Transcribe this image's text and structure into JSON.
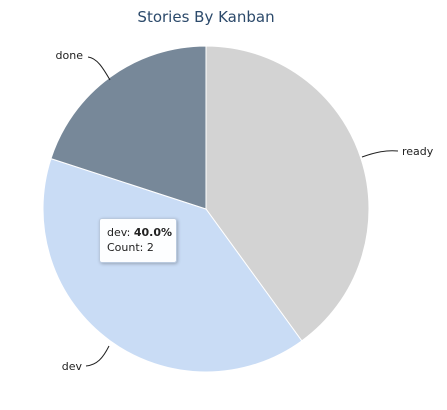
{
  "chart_data": {
    "type": "pie",
    "title": "Stories By Kanban",
    "series": [
      {
        "name": "",
        "categories": [
          "ready",
          "dev",
          "done"
        ],
        "values": [
          2,
          2,
          1
        ]
      }
    ],
    "slices": [
      {
        "label": "ready",
        "value": 2,
        "color": "#d3d3d3"
      },
      {
        "label": "dev",
        "value": 2,
        "color": "#c9dcf5"
      },
      {
        "label": "done",
        "value": 1,
        "color": "#778899"
      }
    ]
  },
  "tooltip": {
    "series_label": "dev",
    "percent": "40.0%",
    "count_text": "Count: 2"
  }
}
